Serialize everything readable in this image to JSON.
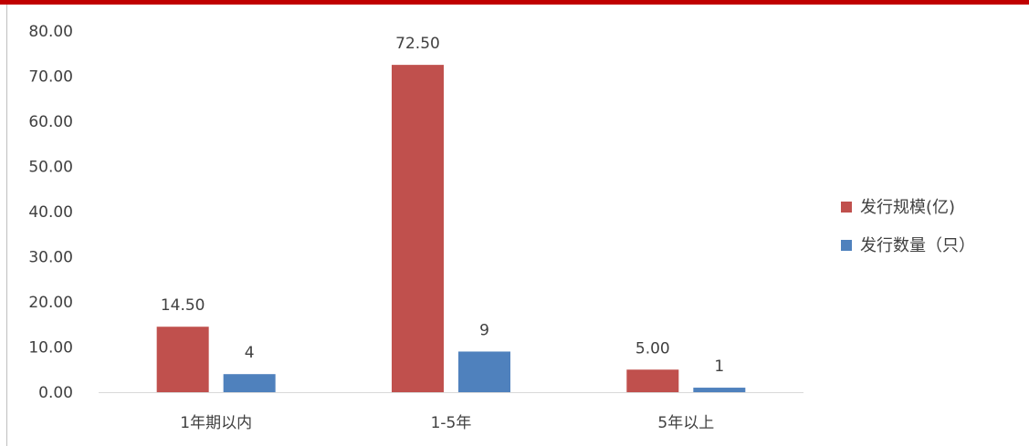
{
  "chart_data": {
    "type": "bar",
    "categories": [
      "1年期以内",
      "1-5年",
      "5年以上"
    ],
    "series": [
      {
        "name": "发行规模(亿)",
        "values": [
          14.5,
          72.5,
          5.0
        ],
        "labels": [
          "14.50",
          "72.50",
          "5.00"
        ],
        "color": "#c0504d"
      },
      {
        "name": "发行数量（只）",
        "values": [
          4,
          9,
          1
        ],
        "labels": [
          "4",
          "9",
          "1"
        ],
        "color": "#4f81bd"
      }
    ],
    "yticks": [
      "0.00",
      "10.00",
      "20.00",
      "30.00",
      "40.00",
      "50.00",
      "60.00",
      "70.00",
      "80.00"
    ],
    "ylim": [
      0,
      80
    ],
    "grid": false,
    "legend": "right",
    "axis_color": "#d9d9d9",
    "text_color": "#404040"
  },
  "accent_color": "#c00000"
}
